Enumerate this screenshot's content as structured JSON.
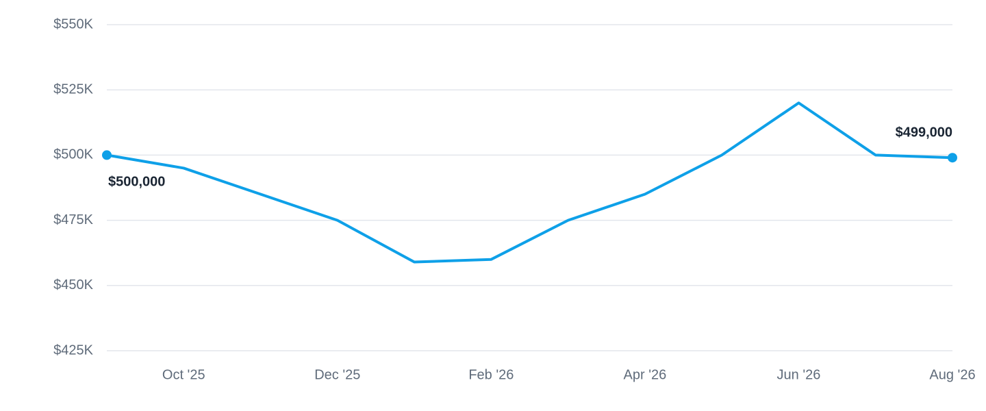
{
  "chart_data": {
    "type": "line",
    "categories": [
      null,
      "Oct '25",
      null,
      "Dec '25",
      null,
      "Feb '26",
      null,
      "Apr '26",
      null,
      "Jun '26",
      null,
      "Aug '26"
    ],
    "values": [
      500000,
      495000,
      485000,
      475000,
      459000,
      460000,
      475000,
      485000,
      500000,
      520000,
      500000,
      499000
    ],
    "value_labels": [
      "$500,000",
      null,
      null,
      null,
      null,
      null,
      null,
      null,
      null,
      null,
      null,
      "$499,000"
    ],
    "color": "#0ea0e8",
    "ylim": [
      425000,
      550000
    ],
    "yticks": [
      {
        "value": 425000,
        "label": "$425K"
      },
      {
        "value": 450000,
        "label": "$450K"
      },
      {
        "value": 475000,
        "label": "$475K"
      },
      {
        "value": 500000,
        "label": "$500K"
      },
      {
        "value": 525000,
        "label": "$525K"
      },
      {
        "value": 550000,
        "label": "$550K"
      }
    ],
    "grid": true
  }
}
